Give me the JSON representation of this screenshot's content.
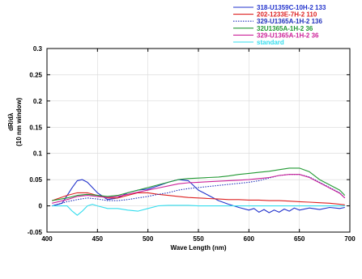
{
  "chart_data": {
    "type": "line",
    "xlabel": "Wave Length (nm)",
    "ylabel": "dR/dλ",
    "ylabel2": "(10 nm window)",
    "xlim": [
      400,
      700
    ],
    "ylim": [
      -0.05,
      0.3
    ],
    "xticks": [
      "400",
      "450",
      "500",
      "550",
      "600",
      "650",
      "700"
    ],
    "yticks": [
      "-0.05",
      "0",
      "0.05",
      "0.1",
      "0.15",
      "0.2",
      "0.25",
      "0.3"
    ],
    "legend_position": "top-right",
    "series": [
      {
        "name": "318-U1359C-10H-2 133",
        "color": "#2233cc",
        "style": "solid",
        "x": [
          405,
          415,
          425,
          430,
          435,
          440,
          450,
          460,
          470,
          480,
          490,
          500,
          510,
          520,
          530,
          540,
          550,
          560,
          570,
          580,
          590,
          600,
          605,
          610,
          615,
          620,
          625,
          630,
          635,
          640,
          645,
          650,
          660,
          670,
          680,
          690,
          695
        ],
        "y": [
          0.0,
          0.005,
          0.035,
          0.048,
          0.05,
          0.045,
          0.025,
          0.012,
          0.015,
          0.025,
          0.03,
          0.032,
          0.038,
          0.045,
          0.05,
          0.048,
          0.03,
          0.02,
          0.01,
          0.003,
          -0.003,
          -0.008,
          -0.005,
          -0.012,
          -0.007,
          -0.013,
          -0.008,
          -0.012,
          -0.006,
          -0.01,
          -0.004,
          -0.008,
          -0.004,
          -0.007,
          -0.003,
          -0.005,
          -0.003
        ]
      },
      {
        "name": "202-1233E-7H-2 110",
        "color": "#dd2222",
        "style": "solid",
        "x": [
          405,
          420,
          430,
          440,
          450,
          460,
          470,
          480,
          490,
          500,
          510,
          520,
          530,
          540,
          550,
          560,
          570,
          580,
          590,
          600,
          610,
          620,
          630,
          640,
          650,
          660,
          670,
          680,
          690,
          695
        ],
        "y": [
          0.01,
          0.02,
          0.025,
          0.025,
          0.02,
          0.015,
          0.015,
          0.02,
          0.025,
          0.025,
          0.022,
          0.02,
          0.018,
          0.016,
          0.015,
          0.014,
          0.013,
          0.012,
          0.012,
          0.011,
          0.011,
          0.01,
          0.01,
          0.009,
          0.008,
          0.007,
          0.006,
          0.005,
          0.003,
          0.002
        ]
      },
      {
        "name": "329-U1365A-1H-2 136",
        "color": "#1f2fbb",
        "style": "dotted",
        "x": [
          405,
          420,
          430,
          440,
          450,
          460,
          470,
          480,
          490,
          500,
          510,
          520,
          530,
          540,
          550,
          560,
          570,
          580,
          590,
          600,
          610,
          620,
          630,
          640,
          650,
          660,
          670,
          680,
          690,
          695
        ],
        "y": [
          0.0,
          0.008,
          0.012,
          0.015,
          0.013,
          0.01,
          0.01,
          0.012,
          0.015,
          0.018,
          0.022,
          0.025,
          0.03,
          0.033,
          0.035,
          0.037,
          0.039,
          0.041,
          0.043,
          0.045,
          0.048,
          0.053,
          0.058,
          0.06,
          0.06,
          0.055,
          0.045,
          0.035,
          0.025,
          0.015
        ]
      },
      {
        "name": "32U1365A-1H-2 36",
        "color": "#229933",
        "style": "solid",
        "x": [
          405,
          420,
          430,
          440,
          450,
          460,
          470,
          480,
          490,
          500,
          510,
          520,
          530,
          540,
          550,
          560,
          570,
          580,
          590,
          600,
          610,
          620,
          630,
          640,
          650,
          660,
          670,
          680,
          690,
          695
        ],
        "y": [
          0.01,
          0.015,
          0.02,
          0.022,
          0.02,
          0.018,
          0.02,
          0.025,
          0.03,
          0.035,
          0.04,
          0.045,
          0.05,
          0.052,
          0.053,
          0.054,
          0.055,
          0.057,
          0.06,
          0.062,
          0.064,
          0.066,
          0.069,
          0.072,
          0.072,
          0.065,
          0.05,
          0.04,
          0.03,
          0.02
        ]
      },
      {
        "name": "329-U1365A-1H-2 36",
        "color": "#cc2299",
        "style": "solid",
        "x": [
          405,
          420,
          430,
          440,
          450,
          460,
          470,
          480,
          490,
          500,
          510,
          520,
          530,
          540,
          550,
          560,
          570,
          580,
          590,
          600,
          610,
          620,
          630,
          640,
          650,
          660,
          670,
          680,
          690,
          695
        ],
        "y": [
          0.005,
          0.012,
          0.018,
          0.02,
          0.018,
          0.016,
          0.018,
          0.022,
          0.026,
          0.03,
          0.034,
          0.038,
          0.042,
          0.044,
          0.045,
          0.046,
          0.047,
          0.048,
          0.049,
          0.05,
          0.052,
          0.054,
          0.058,
          0.06,
          0.06,
          0.054,
          0.044,
          0.034,
          0.024,
          0.015
        ]
      },
      {
        "name": "standard",
        "color": "#33ddee",
        "style": "solid",
        "x": [
          405,
          420,
          425,
          430,
          435,
          440,
          445,
          450,
          460,
          470,
          480,
          490,
          500,
          510,
          520,
          530,
          540,
          550,
          560,
          570,
          580,
          590,
          600,
          610,
          620,
          630,
          640,
          650,
          660,
          670,
          680,
          690,
          695
        ],
        "y": [
          0.0,
          0.0,
          -0.01,
          -0.018,
          -0.01,
          0.0,
          0.003,
          0.0,
          -0.005,
          -0.005,
          -0.008,
          -0.01,
          -0.005,
          0.0,
          0.001,
          0.001,
          0.001,
          0.0,
          0.0,
          0.0,
          0.0,
          0.0,
          0.0,
          0.0,
          0.0,
          0.0,
          0.0,
          0.0,
          0.0,
          0.0,
          0.0,
          0.0,
          0.0
        ]
      }
    ]
  }
}
